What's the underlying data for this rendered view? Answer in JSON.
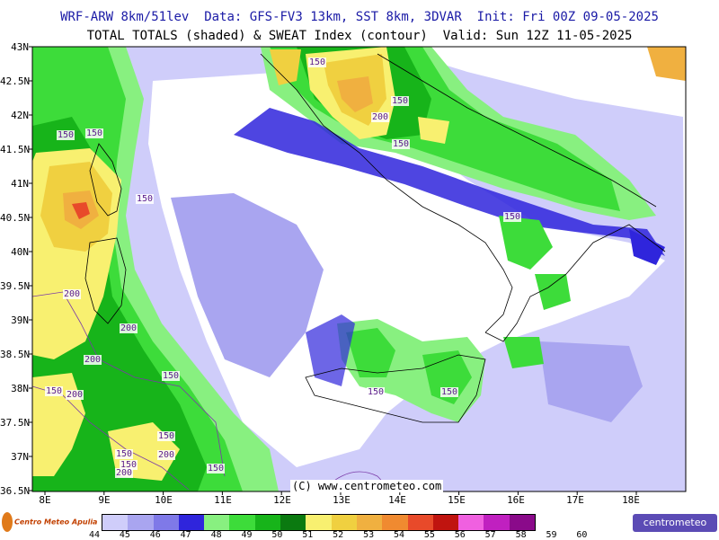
{
  "header": {
    "line1": "WRF-ARW 8km/51lev  Data: GFS-FV3 13km, SST 8km, 3DVAR  Init: Fri 00Z 09-05-2025",
    "line2": "TOTAL TOTALS (shaded) & SWEAT Index (contour)  Valid: Sun 12Z 11-05-2025"
  },
  "axes": {
    "y_labels": [
      "43N",
      "42.5N",
      "42N",
      "41.5N",
      "41N",
      "40.5N",
      "40N",
      "39.5N",
      "39N",
      "38.5N",
      "38N",
      "37.5N",
      "37N",
      "36.5N"
    ],
    "x_labels": [
      "8E",
      "9E",
      "10E",
      "11E",
      "12E",
      "13E",
      "14E",
      "15E",
      "16E",
      "17E",
      "18E"
    ]
  },
  "credit": "(C) www.centrometeo.com",
  "contour_labels": [
    "150",
    "150",
    "150",
    "150",
    "200",
    "150",
    "150",
    "150",
    "150",
    "150",
    "200",
    "200",
    "200",
    "150",
    "150",
    "200",
    "150",
    "200",
    "150",
    "200",
    "150",
    "150"
  ],
  "colorbar": {
    "values": [
      "44",
      "45",
      "46",
      "47",
      "48",
      "49",
      "50",
      "51",
      "52",
      "53",
      "54",
      "55",
      "56",
      "57",
      "58",
      "59",
      "60"
    ],
    "colors": [
      "#cfcdfa",
      "#a9a5f0",
      "#7f79e8",
      "#2f25dc",
      "#88f080",
      "#3ddc3a",
      "#17b41a",
      "#0b7a10",
      "#f8f070",
      "#f0d040",
      "#f0b040",
      "#f08a30",
      "#e84a2a",
      "#c0140f",
      "#f060e0",
      "#c020c0",
      "#8a0a8a"
    ]
  },
  "logos": {
    "left": "Centro Meteo Apulia",
    "right": "centrometeo"
  }
}
